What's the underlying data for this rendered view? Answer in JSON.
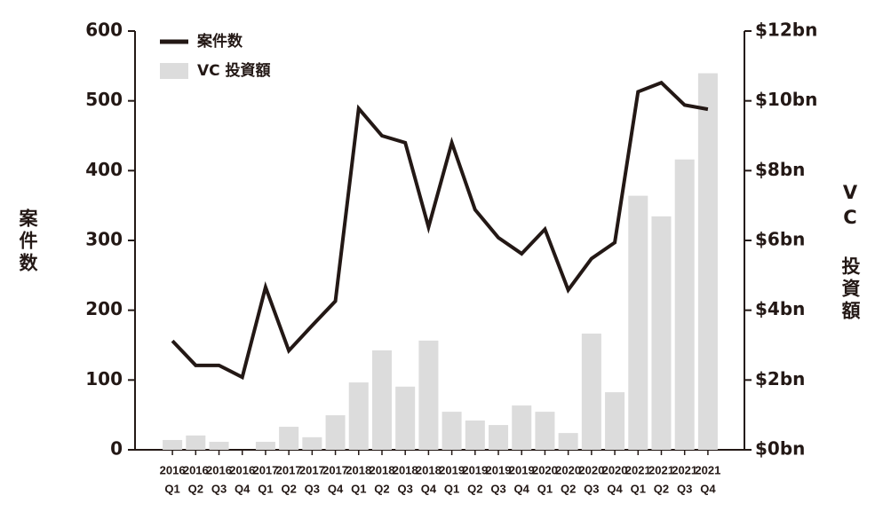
{
  "chart_data": {
    "type": "combo",
    "y_label": "案件数",
    "y2_label": "VC 投資額",
    "categories": [
      [
        "2016",
        "Q1"
      ],
      [
        "2016",
        "Q2"
      ],
      [
        "2016",
        "Q3"
      ],
      [
        "2016",
        "Q4"
      ],
      [
        "2017",
        "Q1"
      ],
      [
        "2017",
        "Q2"
      ],
      [
        "2017",
        "Q3"
      ],
      [
        "2017",
        "Q4"
      ],
      [
        "2018",
        "Q1"
      ],
      [
        "2018",
        "Q2"
      ],
      [
        "2018",
        "Q3"
      ],
      [
        "2018",
        "Q4"
      ],
      [
        "2019",
        "Q1"
      ],
      [
        "2019",
        "Q2"
      ],
      [
        "2019",
        "Q3"
      ],
      [
        "2019",
        "Q4"
      ],
      [
        "2020",
        "Q1"
      ],
      [
        "2020",
        "Q2"
      ],
      [
        "2020",
        "Q3"
      ],
      [
        "2020",
        "Q4"
      ],
      [
        "2021",
        "Q1"
      ],
      [
        "2021",
        "Q2"
      ],
      [
        "2021",
        "Q3"
      ],
      [
        "2021",
        "Q4"
      ]
    ],
    "series": [
      {
        "name": "案件数",
        "type": "line",
        "color": "#231815",
        "values": [
          156,
          121,
          121,
          104,
          233,
          142,
          178,
          213,
          489,
          450,
          440,
          319,
          440,
          344,
          304,
          281,
          316,
          229,
          274,
          297,
          513,
          526,
          494,
          488
        ]
      },
      {
        "name": "VC 投資額",
        "type": "bar",
        "axis": "y2",
        "color": "#dcdcdc",
        "values": [
          0.28,
          0.41,
          0.23,
          0,
          0.23,
          0.66,
          0.36,
          0.99,
          1.93,
          2.85,
          1.81,
          3.13,
          1.09,
          0.84,
          0.71,
          1.27,
          1.09,
          0.48,
          3.33,
          1.65,
          7.28,
          6.69,
          8.32,
          10.79
        ]
      }
    ],
    "ylim": [
      0,
      600
    ],
    "yticks": [
      0,
      100,
      200,
      300,
      400,
      500,
      600
    ],
    "y2lim": [
      0,
      12
    ],
    "y2ticks": [
      {
        "value": 0,
        "label": "$0bn"
      },
      {
        "value": 2,
        "label": "$2bn"
      },
      {
        "value": 4,
        "label": "$4bn"
      },
      {
        "value": 6,
        "label": "$6bn"
      },
      {
        "value": 8,
        "label": "$8bn"
      },
      {
        "value": 10,
        "label": "$10bn"
      },
      {
        "value": 12,
        "label": "$12bn"
      }
    ],
    "legend": "top-left"
  }
}
